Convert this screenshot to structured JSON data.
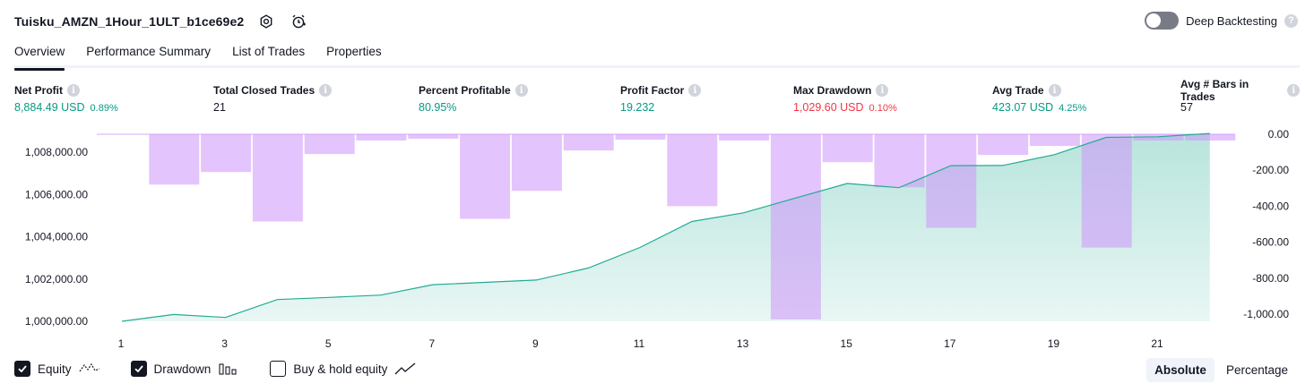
{
  "header": {
    "title": "Tuisku_AMZN_1Hour_1ULT_b1ce69e2",
    "icons": [
      "settings-icon",
      "alert-clock-icon"
    ],
    "deep_backtesting_label": "Deep Backtesting",
    "deep_backtesting_on": false,
    "help_glyph": "?"
  },
  "tabs": [
    {
      "label": "Overview",
      "active": true
    },
    {
      "label": "Performance Summary",
      "active": false
    },
    {
      "label": "List of Trades",
      "active": false
    },
    {
      "label": "Properties",
      "active": false
    }
  ],
  "metrics": {
    "info_glyph": "i",
    "net_profit": {
      "label": "Net Profit",
      "value": "8,884.49 USD",
      "pct": "0.89%"
    },
    "total_closed_trades": {
      "label": "Total Closed Trades",
      "value": "21"
    },
    "percent_profitable": {
      "label": "Percent Profitable",
      "value": "80.95%"
    },
    "profit_factor": {
      "label": "Profit Factor",
      "value": "19.232"
    },
    "max_drawdown": {
      "label": "Max Drawdown",
      "value": "1,029.60 USD",
      "pct": "0.10%"
    },
    "avg_trade": {
      "label": "Avg Trade",
      "value": "423.07 USD",
      "pct": "4.25%"
    },
    "avg_bars": {
      "label": "Avg # Bars in Trades",
      "value": "57"
    }
  },
  "colors": {
    "green": "#089981",
    "red": "#f23645",
    "equity_line": "#22ab94",
    "drawdown_bar": "#ce93fa",
    "text": "#131722",
    "axis_text": "#131722"
  },
  "chart_data": {
    "type": "line",
    "x_ticks": [
      "1",
      "3",
      "5",
      "7",
      "9",
      "11",
      "13",
      "15",
      "17",
      "19",
      "21"
    ],
    "y_left_ticks": [
      "1,000,000.00",
      "1,002,000.00",
      "1,004,000.00",
      "1,006,000.00",
      "1,008,000.00"
    ],
    "y_right_ticks": [
      "0.00",
      "-200.00",
      "-400.00",
      "-600.00",
      "-800.00",
      "-1,000.00"
    ],
    "y_left_lim": [
      999500,
      1008900
    ],
    "y_right_lim": [
      -1029.6,
      0
    ],
    "series": [
      {
        "kind": "equity",
        "axis": "left",
        "x": [
          1,
          2,
          3,
          4,
          5,
          6,
          7,
          8,
          9,
          10,
          11,
          12,
          13,
          14,
          15,
          16,
          17,
          18,
          19,
          20,
          21,
          22
        ],
        "values": [
          1000000,
          1000320,
          1000180,
          1001030,
          1001130,
          1001240,
          1001730,
          1001840,
          1001950,
          1002520,
          1003490,
          1004720,
          1005130,
          1005830,
          1006520,
          1006320,
          1007360,
          1007370,
          1007880,
          1008700,
          1008730,
          1008884.49
        ]
      },
      {
        "kind": "drawdown",
        "axis": "right",
        "x": [
          1,
          2,
          3,
          4,
          5,
          6,
          7,
          8,
          9,
          10,
          11,
          12,
          13,
          14,
          15,
          16,
          17,
          18,
          19,
          20,
          21,
          22
        ],
        "values": [
          0,
          -280,
          -210,
          -485,
          -110,
          -35,
          -25,
          -470,
          -315,
          -90,
          -30,
          -400,
          -35,
          -1029.6,
          -155,
          -295,
          -520,
          -115,
          -65,
          -630,
          -35,
          -35
        ]
      }
    ]
  },
  "legend": {
    "equity": {
      "label": "Equity",
      "checked": true,
      "icon": "equity-line-icon"
    },
    "drawdown": {
      "label": "Drawdown",
      "checked": true,
      "icon": "drawdown-bars-icon"
    },
    "buy_hold": {
      "label": "Buy & hold equity",
      "checked": false,
      "icon": "buy-hold-line-icon"
    }
  },
  "mode": {
    "absolute": "Absolute",
    "percentage": "Percentage",
    "selected": "Absolute"
  }
}
